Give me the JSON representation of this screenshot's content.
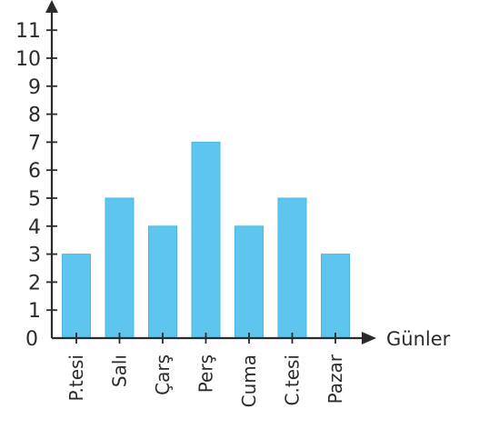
{
  "chart_data": {
    "type": "bar",
    "categories": [
      "P.tesi",
      "Salı",
      "Çarş",
      "Perş",
      "Cuma",
      "C.tesi",
      "Pazar"
    ],
    "values": [
      3,
      5,
      4,
      7,
      4,
      5,
      3
    ],
    "title": "",
    "xlabel": "Günler",
    "ylabel": "",
    "ylim": [
      0,
      11
    ],
    "yticks": [
      0,
      1,
      2,
      3,
      4,
      5,
      6,
      7,
      8,
      9,
      10,
      11
    ],
    "grid": false,
    "bar_color": "#5ec6ee",
    "bar_edge_color": "#4ab8e4",
    "axis_color": "#2b2b2b"
  }
}
